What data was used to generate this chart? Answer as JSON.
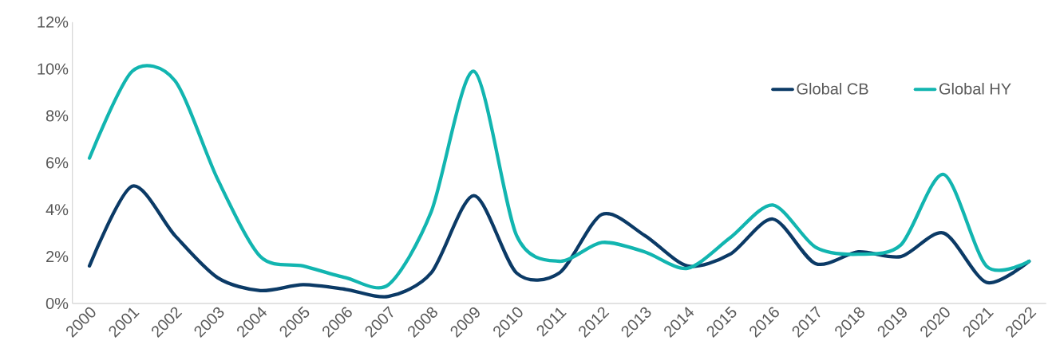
{
  "chart_data": {
    "type": "line",
    "categories": [
      "2000",
      "2001",
      "2002",
      "2003",
      "2004",
      "2005",
      "2006",
      "2007",
      "2008",
      "2009",
      "2010",
      "2011",
      "2012",
      "2013",
      "2014",
      "2015",
      "2016",
      "2017",
      "2018",
      "2019",
      "2020",
      "2021",
      "2022"
    ],
    "series": [
      {
        "name": "Global CB",
        "color": "#0b3a66",
        "values": [
          1.6,
          5.0,
          2.9,
          1.1,
          0.55,
          0.8,
          0.6,
          0.3,
          1.3,
          4.6,
          1.3,
          1.3,
          3.8,
          2.9,
          1.6,
          2.1,
          3.6,
          1.7,
          2.2,
          2.0,
          3.0,
          0.9,
          1.8
        ]
      },
      {
        "name": "Global HY",
        "color": "#12b5b0",
        "values": [
          6.2,
          9.9,
          9.5,
          5.3,
          2.0,
          1.6,
          1.1,
          0.8,
          3.9,
          9.9,
          2.9,
          1.8,
          2.6,
          2.2,
          1.5,
          2.8,
          4.2,
          2.4,
          2.1,
          2.5,
          5.5,
          1.6,
          1.8
        ]
      }
    ],
    "ylim": [
      0,
      12
    ],
    "yticks": [
      {
        "value": 0,
        "label": "0%"
      },
      {
        "value": 2,
        "label": "2%"
      },
      {
        "value": 4,
        "label": "4%"
      },
      {
        "value": 6,
        "label": "6%"
      },
      {
        "value": 8,
        "label": "8%"
      },
      {
        "value": 10,
        "label": "10%"
      },
      {
        "value": 12,
        "label": "12%"
      }
    ],
    "grid": false,
    "legend": "top right",
    "marker": "none",
    "line_style": "solid"
  }
}
